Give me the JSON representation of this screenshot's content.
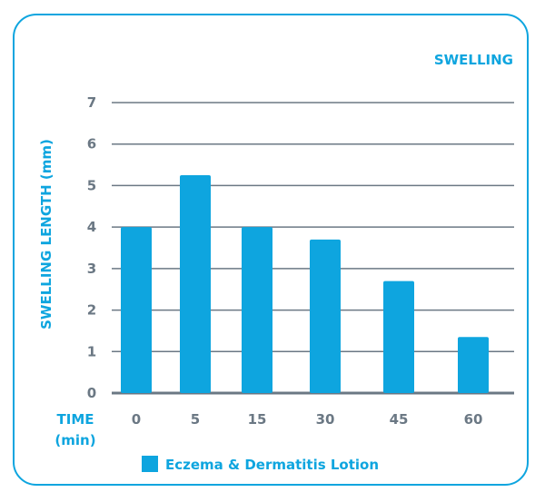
{
  "chart_data": {
    "type": "bar",
    "title": "SWELLING",
    "xlabel_line1": "TIME",
    "xlabel_line2": "(min)",
    "ylabel": "SWELLING LENGTH (mm)",
    "categories": [
      "0",
      "5",
      "15",
      "30",
      "45",
      "60"
    ],
    "series": [
      {
        "name": "Eczema & Dermatitis Lotion",
        "values": [
          4.0,
          5.25,
          4.0,
          3.7,
          2.7,
          1.35
        ]
      }
    ],
    "ylim": [
      0,
      7
    ],
    "yticks": [
      "0",
      "1",
      "2",
      "3",
      "4",
      "5",
      "6",
      "7"
    ],
    "grid": true,
    "legend": "bottom-center",
    "colors": {
      "bar": "#0ea5df",
      "grid": "#6b7884",
      "accent": "#0ea5df",
      "tick": "#6b7884"
    }
  }
}
